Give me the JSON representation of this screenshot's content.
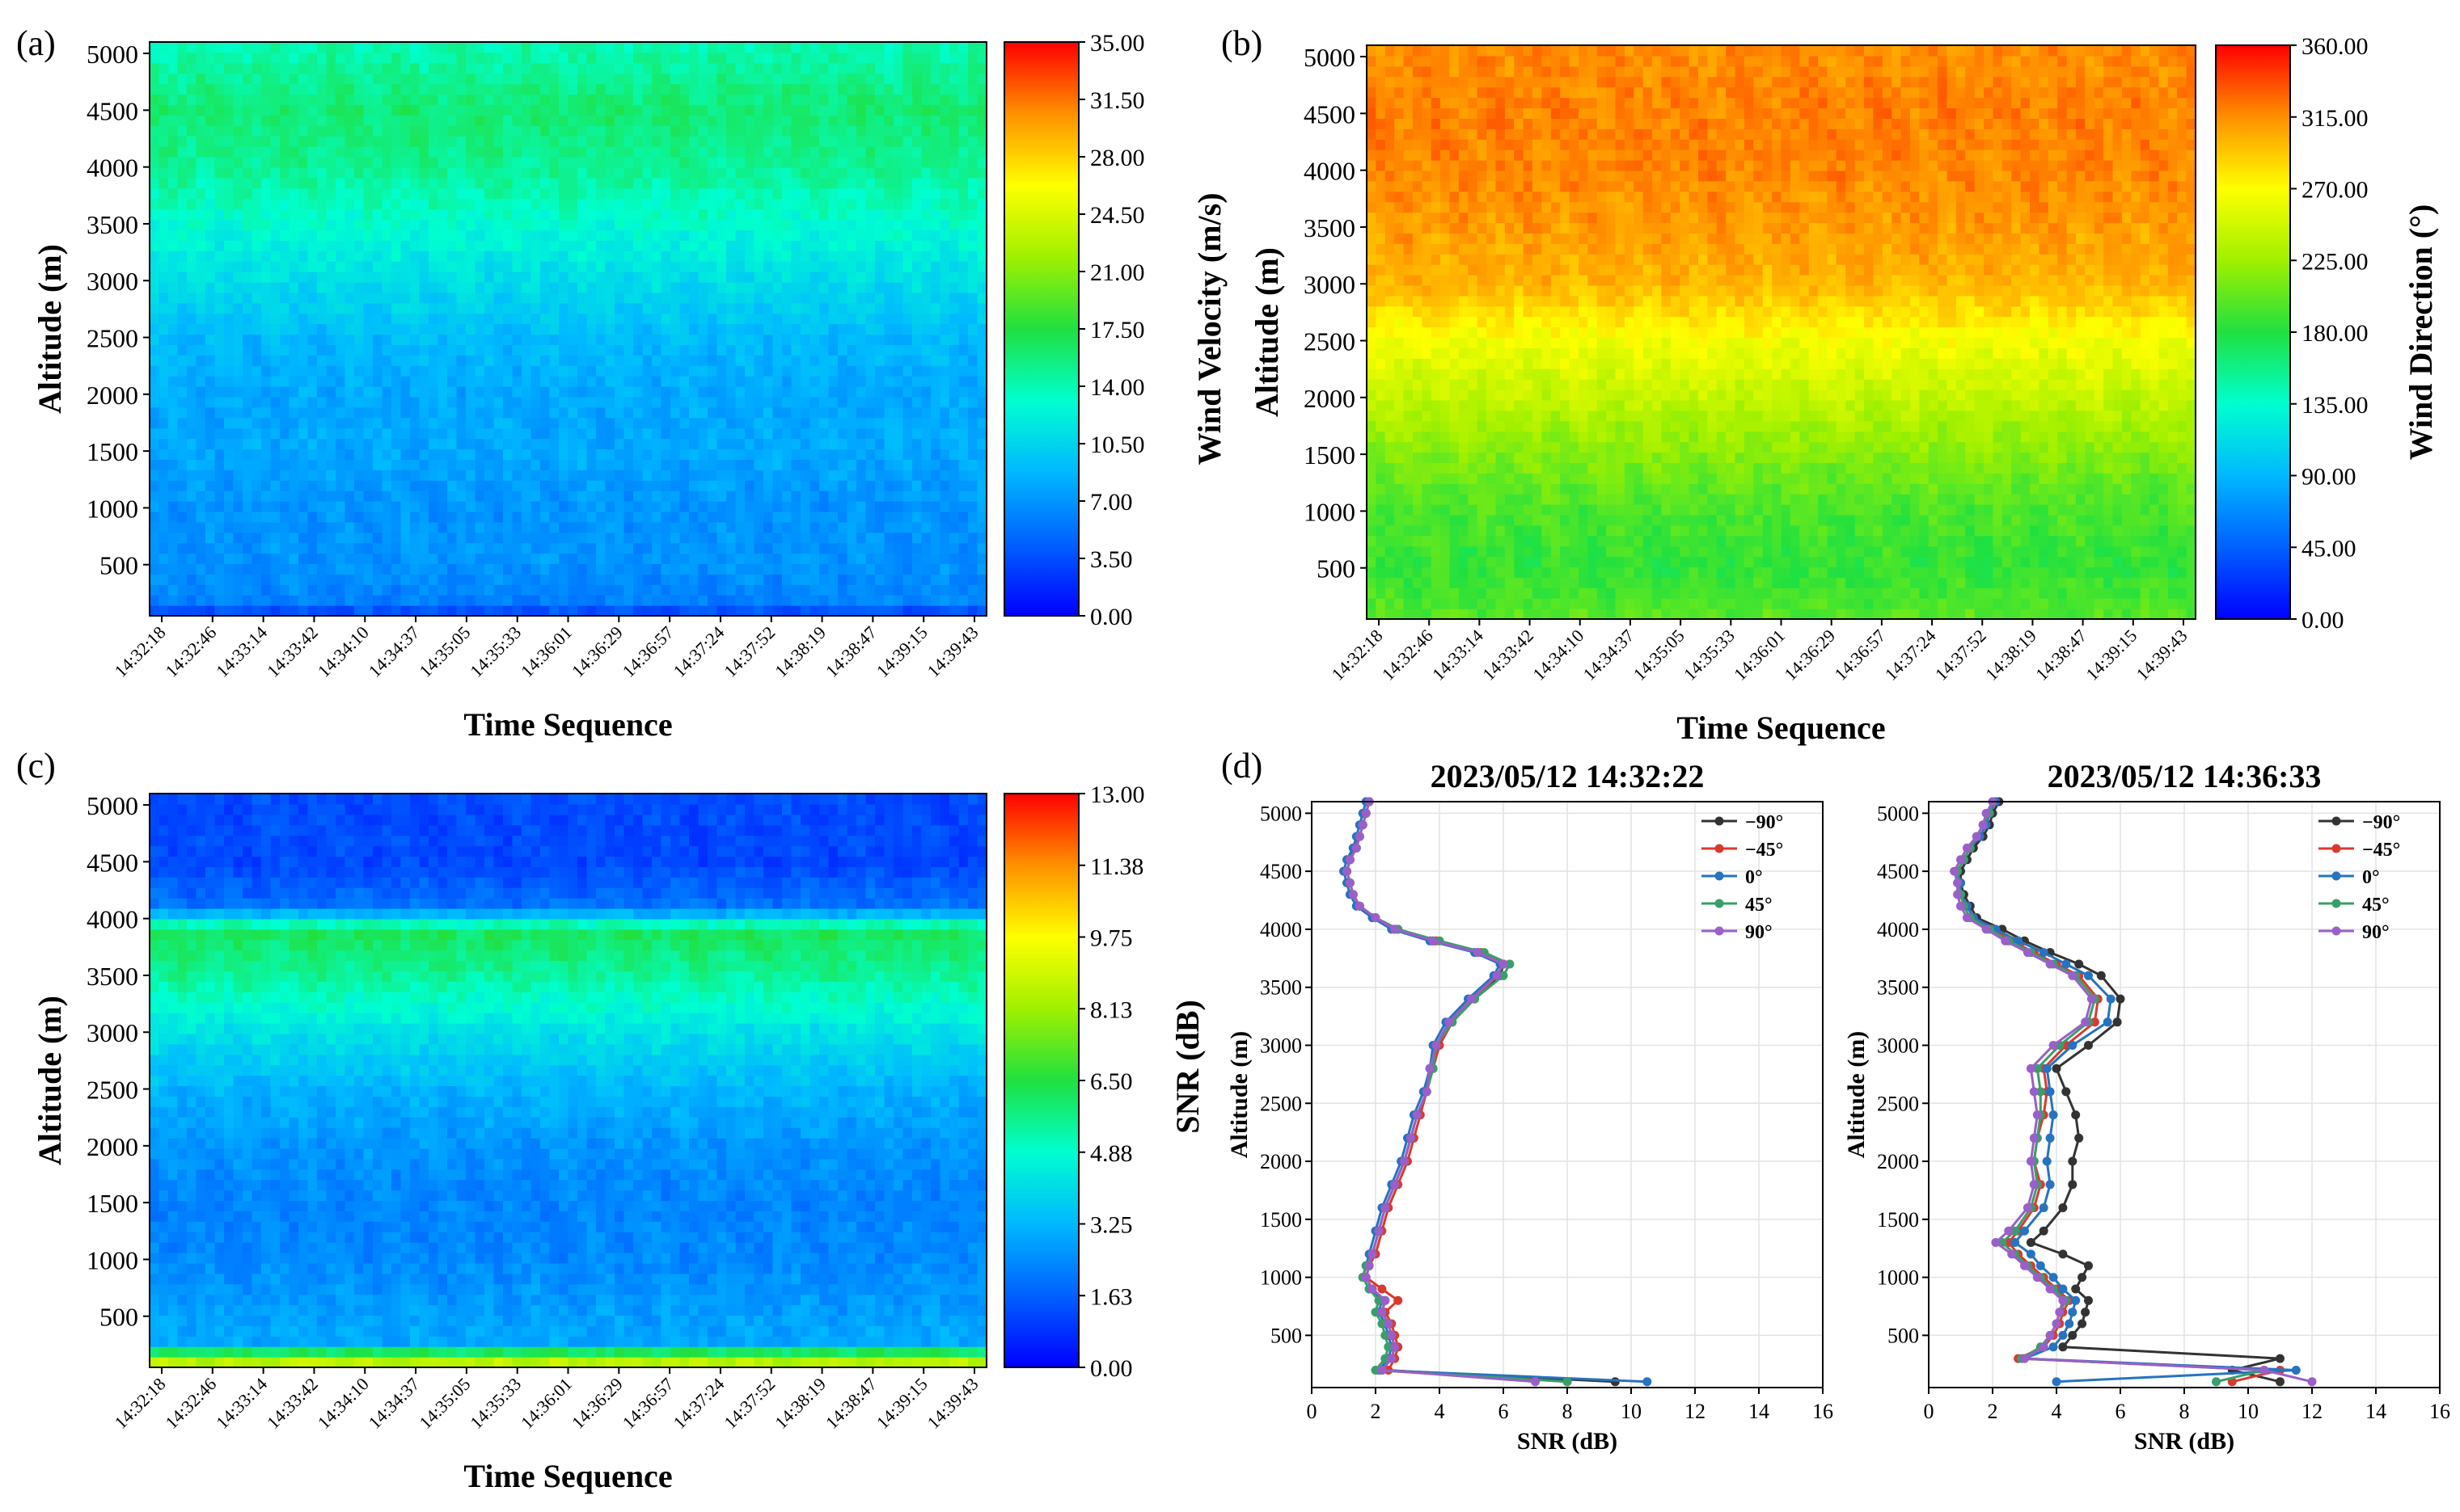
{
  "figure": {
    "panel_labels": [
      "(a)",
      "(b)",
      "(c)",
      "(d)"
    ]
  },
  "chart_data": [
    {
      "panel": "(a)",
      "type": "heatmap",
      "xlabel": "Time Sequence",
      "ylabel": "Altitude (m)",
      "colorbar_label": "Wind Velocity (m/s)",
      "x_ticks": [
        "14:32:18",
        "14:32:46",
        "14:33:14",
        "14:33:42",
        "14:34:10",
        "14:34:37",
        "14:35:05",
        "14:35:33",
        "14:36:01",
        "14:36:29",
        "14:36:57",
        "14:37:24",
        "14:37:52",
        "14:38:19",
        "14:38:47",
        "14:39:15",
        "14:39:43"
      ],
      "y_ticks": [
        500,
        1000,
        1500,
        2000,
        2500,
        3000,
        3500,
        4000,
        4500,
        5000
      ],
      "ylim": [
        50,
        5100
      ],
      "colorbar_ticks": [
        "0.00",
        "3.50",
        "7.00",
        "10.50",
        "14.00",
        "17.50",
        "21.00",
        "24.50",
        "28.00",
        "31.50",
        "35.00"
      ],
      "zlim": [
        0,
        35
      ],
      "profile": [
        [
          50,
          2
        ],
        [
          150,
          6
        ],
        [
          500,
          7
        ],
        [
          1000,
          7
        ],
        [
          1500,
          8
        ],
        [
          2000,
          8
        ],
        [
          2500,
          9
        ],
        [
          3000,
          11
        ],
        [
          3500,
          13
        ],
        [
          4000,
          15
        ],
        [
          4500,
          16
        ],
        [
          5100,
          14
        ]
      ]
    },
    {
      "panel": "(b)",
      "type": "heatmap",
      "xlabel": "Time Sequence",
      "ylabel": "Altitude (m)",
      "colorbar_label": "Wind Direction (°)",
      "x_ticks": [
        "14:32:18",
        "14:32:46",
        "14:33:14",
        "14:33:42",
        "14:34:10",
        "14:34:37",
        "14:35:05",
        "14:35:33",
        "14:36:01",
        "14:36:29",
        "14:36:57",
        "14:37:24",
        "14:37:52",
        "14:38:19",
        "14:38:47",
        "14:39:15",
        "14:39:43"
      ],
      "y_ticks": [
        500,
        1000,
        1500,
        2000,
        2500,
        3000,
        3500,
        4000,
        4500,
        5000
      ],
      "ylim": [
        50,
        5100
      ],
      "colorbar_ticks": [
        "0.00",
        "45.00",
        "90.00",
        "135.00",
        "180.00",
        "225.00",
        "270.00",
        "315.00",
        "360.00"
      ],
      "zlim": [
        0,
        360
      ],
      "profile": [
        [
          50,
          200
        ],
        [
          500,
          185
        ],
        [
          1000,
          195
        ],
        [
          1500,
          215
        ],
        [
          2000,
          240
        ],
        [
          2500,
          265
        ],
        [
          3000,
          300
        ],
        [
          3500,
          310
        ],
        [
          4000,
          318
        ],
        [
          4500,
          320
        ],
        [
          5100,
          315
        ]
      ]
    },
    {
      "panel": "(c)",
      "type": "heatmap",
      "xlabel": "Time Sequence",
      "ylabel": "Altitude (m)",
      "colorbar_label": "SNR (dB)",
      "x_ticks": [
        "14:32:18",
        "14:32:46",
        "14:33:14",
        "14:33:42",
        "14:34:10",
        "14:34:37",
        "14:35:05",
        "14:35:33",
        "14:36:01",
        "14:36:29",
        "14:36:57",
        "14:37:24",
        "14:37:52",
        "14:38:19",
        "14:38:47",
        "14:39:15",
        "14:39:43"
      ],
      "y_ticks": [
        500,
        1000,
        1500,
        2000,
        2500,
        3000,
        3500,
        4000,
        4500,
        5000
      ],
      "ylim": [
        50,
        5100
      ],
      "colorbar_ticks": [
        "0.00",
        "1.63",
        "3.25",
        "4.88",
        "6.50",
        "8.13",
        "9.75",
        "11.38",
        "13.00"
      ],
      "zlim": [
        0,
        13
      ],
      "profile": [
        [
          50,
          9
        ],
        [
          150,
          8
        ],
        [
          250,
          3
        ],
        [
          500,
          2.8
        ],
        [
          1000,
          2.4
        ],
        [
          1500,
          2.3
        ],
        [
          2000,
          2.6
        ],
        [
          2500,
          3.2
        ],
        [
          3000,
          4.2
        ],
        [
          3500,
          5.5
        ],
        [
          3900,
          6.2
        ],
        [
          4100,
          2
        ],
        [
          4500,
          1.2
        ],
        [
          5100,
          1.3
        ]
      ]
    },
    {
      "panel": "(d)-left",
      "type": "line",
      "title": "2023/05/12 14:32:22",
      "xlabel": "SNR (dB)",
      "ylabel": "Altitude (m)",
      "xlim": [
        0,
        16
      ],
      "ylim": [
        50,
        5100
      ],
      "x_ticks": [
        0,
        2,
        4,
        6,
        8,
        10,
        12,
        14,
        16
      ],
      "y_ticks": [
        500,
        1000,
        1500,
        2000,
        2500,
        3000,
        3500,
        4000,
        4500,
        5000
      ],
      "legend_position": "top-right",
      "y": [
        100,
        200,
        300,
        400,
        500,
        600,
        700,
        800,
        900,
        1000,
        1100,
        1200,
        1400,
        1600,
        1800,
        2000,
        2200,
        2400,
        2600,
        2800,
        3000,
        3200,
        3400,
        3600,
        3700,
        3800,
        3900,
        4000,
        4100,
        4200,
        4300,
        4400,
        4500,
        4600,
        4700,
        4800,
        4900,
        5000,
        5100
      ],
      "series": [
        {
          "name": "−90°",
          "color": "#333333",
          "x": [
            9.5,
            2.2,
            2.5,
            2.6,
            2.5,
            2.4,
            2.2,
            2.3,
            1.9,
            1.7,
            1.8,
            1.9,
            2.1,
            2.3,
            2.6,
            2.9,
            3.1,
            3.3,
            3.6,
            3.7,
            3.9,
            4.3,
            5.0,
            5.9,
            6.0,
            5.2,
            3.8,
            2.6,
            2.0,
            1.5,
            1.3,
            1.2,
            1.1,
            1.2,
            1.4,
            1.5,
            1.6,
            1.7,
            1.8
          ]
        },
        {
          "name": "−45°",
          "color": "#d93a2e",
          "x": [
            8.0,
            2.4,
            2.6,
            2.7,
            2.6,
            2.5,
            2.3,
            2.7,
            2.2,
            1.7,
            1.8,
            2.0,
            2.2,
            2.4,
            2.7,
            3.0,
            3.2,
            3.4,
            3.6,
            3.8,
            4.0,
            4.4,
            5.1,
            5.8,
            6.0,
            5.3,
            3.9,
            2.7,
            2.0,
            1.5,
            1.3,
            1.2,
            1.1,
            1.2,
            1.3,
            1.5,
            1.6,
            1.7,
            1.8
          ]
        },
        {
          "name": "0°",
          "color": "#2673c0",
          "x": [
            10.5,
            2.1,
            2.4,
            2.5,
            2.4,
            2.3,
            2.1,
            2.2,
            1.8,
            1.6,
            1.7,
            1.8,
            2.0,
            2.2,
            2.5,
            2.8,
            3.0,
            3.2,
            3.5,
            3.7,
            3.8,
            4.2,
            4.9,
            5.7,
            5.9,
            5.1,
            3.7,
            2.5,
            1.9,
            1.4,
            1.2,
            1.1,
            1.0,
            1.1,
            1.3,
            1.4,
            1.5,
            1.6,
            1.7
          ]
        },
        {
          "name": "45°",
          "color": "#3a9e6a",
          "x": [
            8.0,
            2.0,
            2.3,
            2.4,
            2.3,
            2.2,
            2.0,
            2.1,
            1.8,
            1.6,
            1.7,
            1.9,
            2.1,
            2.3,
            2.6,
            2.9,
            3.1,
            3.3,
            3.6,
            3.8,
            3.9,
            4.4,
            5.1,
            6.0,
            6.2,
            5.4,
            4.0,
            2.7,
            2.0,
            1.5,
            1.3,
            1.2,
            1.1,
            1.2,
            1.4,
            1.5,
            1.6,
            1.7,
            1.8
          ]
        },
        {
          "name": "90°",
          "color": "#9a5fc8",
          "x": [
            7.0,
            2.2,
            2.5,
            2.6,
            2.5,
            2.4,
            2.2,
            2.3,
            1.9,
            1.7,
            1.8,
            1.9,
            2.1,
            2.3,
            2.6,
            2.9,
            3.1,
            3.3,
            3.6,
            3.7,
            3.9,
            4.3,
            5.0,
            5.8,
            6.0,
            5.2,
            3.8,
            2.6,
            2.0,
            1.5,
            1.3,
            1.2,
            1.1,
            1.2,
            1.4,
            1.5,
            1.6,
            1.7,
            1.8
          ]
        }
      ]
    },
    {
      "panel": "(d)-right",
      "type": "line",
      "title": "2023/05/12 14:36:33",
      "xlabel": "SNR (dB)",
      "ylabel": "Altitude (m)",
      "xlim": [
        0,
        16
      ],
      "ylim": [
        50,
        5100
      ],
      "x_ticks": [
        0,
        2,
        4,
        6,
        8,
        10,
        12,
        14,
        16
      ],
      "y_ticks": [
        500,
        1000,
        1500,
        2000,
        2500,
        3000,
        3500,
        4000,
        4500,
        5000
      ],
      "legend_position": "top-right",
      "y": [
        100,
        200,
        300,
        400,
        500,
        600,
        700,
        800,
        900,
        1000,
        1100,
        1200,
        1300,
        1400,
        1600,
        1800,
        2000,
        2200,
        2400,
        2600,
        2800,
        3000,
        3200,
        3400,
        3600,
        3700,
        3800,
        3900,
        4000,
        4100,
        4200,
        4300,
        4400,
        4500,
        4600,
        4700,
        4800,
        4900,
        5000,
        5100
      ],
      "series": [
        {
          "name": "−90°",
          "color": "#333333",
          "x": [
            11.0,
            9.5,
            11.0,
            4.2,
            4.5,
            4.8,
            4.9,
            5.0,
            4.6,
            4.8,
            5.0,
            4.2,
            3.2,
            3.6,
            4.2,
            4.5,
            4.5,
            4.7,
            4.6,
            4.3,
            4.0,
            5.0,
            5.9,
            6.0,
            5.4,
            4.7,
            3.8,
            3.0,
            2.3,
            1.5,
            1.3,
            1.1,
            1.0,
            1.0,
            1.2,
            1.4,
            1.7,
            1.9,
            2.0,
            2.2
          ]
        },
        {
          "name": "−45°",
          "color": "#d93a2e",
          "x": [
            9.5,
            11.0,
            2.8,
            3.6,
            3.9,
            4.1,
            4.2,
            4.4,
            4.0,
            3.6,
            3.2,
            2.8,
            2.5,
            2.8,
            3.3,
            3.5,
            3.3,
            3.4,
            3.6,
            3.7,
            3.6,
            4.3,
            5.2,
            5.3,
            4.7,
            4.0,
            3.3,
            2.6,
            2.0,
            1.4,
            1.2,
            1.0,
            1.0,
            0.9,
            1.1,
            1.3,
            1.6,
            1.8,
            1.9,
            2.1
          ]
        },
        {
          "name": "0°",
          "color": "#2673c0",
          "x": [
            4.0,
            11.5,
            3.0,
            3.9,
            4.2,
            4.4,
            4.5,
            4.6,
            4.2,
            3.9,
            3.5,
            3.2,
            2.7,
            3.0,
            3.6,
            3.8,
            3.7,
            3.8,
            3.9,
            3.8,
            3.7,
            4.5,
            5.6,
            5.7,
            5.0,
            4.3,
            3.6,
            2.8,
            2.1,
            1.4,
            1.2,
            1.0,
            1.0,
            0.9,
            1.1,
            1.3,
            1.6,
            1.8,
            1.9,
            2.1
          ]
        },
        {
          "name": "45°",
          "color": "#3a9e6a",
          "x": [
            9.0,
            10.5,
            2.9,
            3.5,
            3.8,
            4.0,
            4.1,
            4.3,
            3.9,
            3.5,
            3.1,
            2.7,
            2.3,
            2.7,
            3.2,
            3.4,
            3.3,
            3.4,
            3.5,
            3.5,
            3.4,
            4.1,
            5.0,
            5.2,
            4.6,
            3.9,
            3.2,
            2.5,
            1.9,
            1.3,
            1.1,
            1.0,
            0.9,
            0.9,
            1.1,
            1.3,
            1.5,
            1.7,
            1.9,
            2.0
          ]
        },
        {
          "name": "90°",
          "color": "#9a5fc8",
          "x": [
            12.0,
            10.5,
            3.0,
            3.6,
            3.8,
            4.0,
            4.1,
            4.2,
            3.8,
            3.4,
            3.0,
            2.6,
            2.1,
            2.5,
            3.1,
            3.3,
            3.2,
            3.3,
            3.4,
            3.3,
            3.2,
            3.9,
            4.9,
            5.1,
            4.5,
            3.8,
            3.1,
            2.4,
            1.8,
            1.2,
            1.0,
            0.9,
            0.9,
            0.8,
            1.0,
            1.2,
            1.5,
            1.7,
            1.8,
            2.0
          ]
        }
      ]
    }
  ]
}
